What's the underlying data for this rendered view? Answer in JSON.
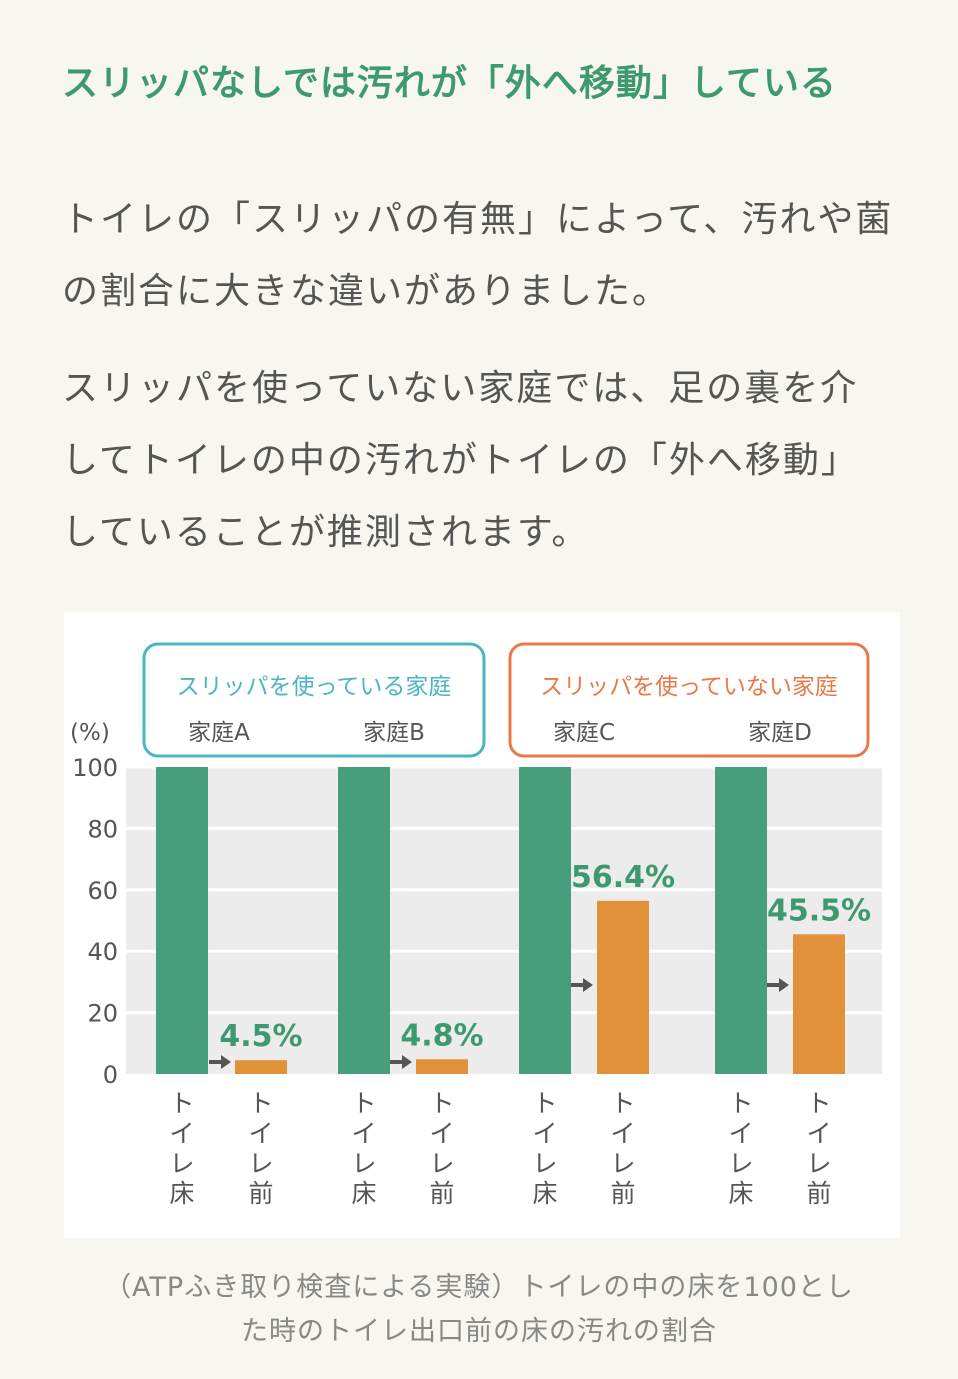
{
  "heading": "スリッパなしでは汚れが「外へ移動」している",
  "paragraph1": [
    "トイレの「スリッパの有無」によって、汚れや菌",
    "の割合に大きな違いがありました。"
  ],
  "paragraph2": [
    "スリッパを使っていない家庭では、足の裏を介",
    "してトイレの中の汚れがトイレの「外へ移動」",
    "していることが推測されます。"
  ],
  "chart_data": {
    "type": "bar",
    "ylabel": "(%)",
    "ylim": [
      0,
      100
    ],
    "yticks": [
      0,
      20,
      40,
      60,
      80,
      100
    ],
    "grid": true,
    "groups": [
      {
        "label": "スリッパを使っている家庭",
        "color": "#4bb6c2",
        "households": [
          "家庭A",
          "家庭B"
        ]
      },
      {
        "label": "スリッパを使っていない家庭",
        "color": "#e87a4a",
        "households": [
          "家庭C",
          "家庭D"
        ]
      }
    ],
    "categories": [
      "トイレ床",
      "トイレ前"
    ],
    "households": [
      {
        "name": "家庭A",
        "toilet_floor": 100,
        "toilet_front": 4.5,
        "label": "4.5%"
      },
      {
        "name": "家庭B",
        "toilet_floor": 100,
        "toilet_front": 4.8,
        "label": "4.8%"
      },
      {
        "name": "家庭C",
        "toilet_floor": 100,
        "toilet_front": 56.4,
        "label": "56.4%"
      },
      {
        "name": "家庭D",
        "toilet_floor": 100,
        "toilet_front": 45.5,
        "label": "45.5%"
      }
    ],
    "colors": {
      "toilet_floor": "#479e7c",
      "toilet_front": "#e2913b",
      "value_label": "#3e9a6e",
      "arrow": "#555555",
      "plot_bg": "#ececec"
    }
  },
  "caption": [
    "（ATPふき取り検査による実験）トイレの中の床を100とし",
    "た時のトイレ出口前の床の汚れの割合"
  ]
}
